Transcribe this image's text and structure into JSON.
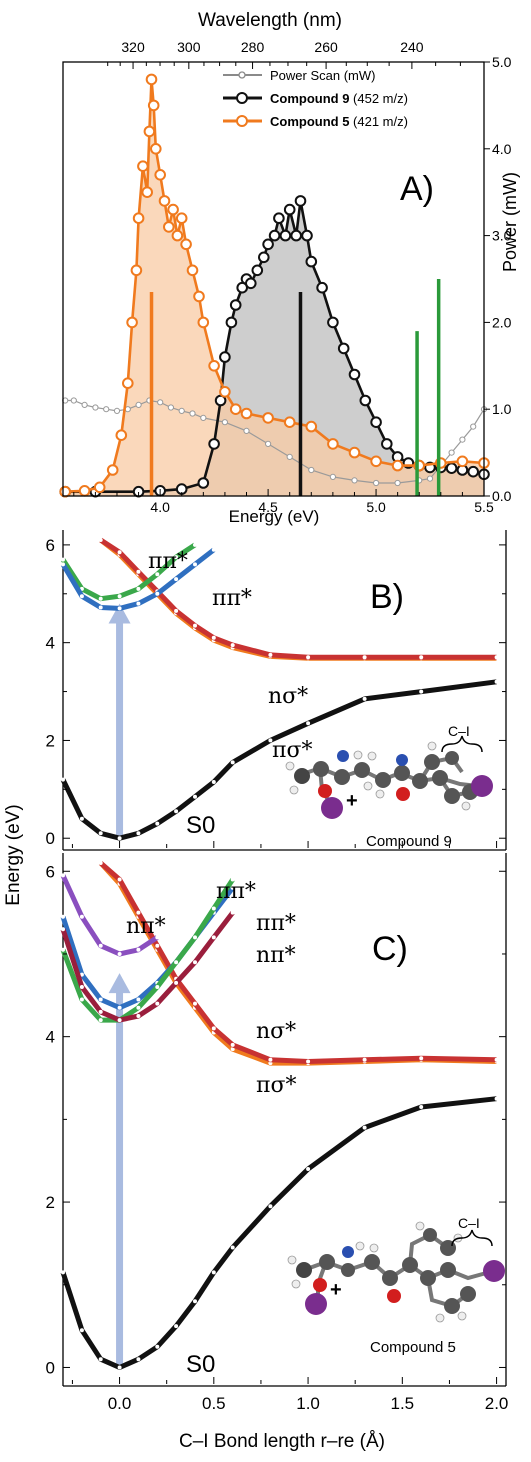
{
  "panel_a": {
    "top_axis_title": "Wavelength (nm)",
    "bottom_axis_title": "Energy (eV)",
    "right_axis_title": "Power (mW)",
    "panel_label": "A)",
    "legend": [
      {
        "label": "Power Scan (mW)",
        "suffix": "",
        "color": "#8a8a8a"
      },
      {
        "label": "Compound 9",
        "suffix": " (452 m/z)",
        "color": "#111111"
      },
      {
        "label": "Compound 5",
        "suffix": " (421 m/z)",
        "color": "#f07a1e"
      }
    ]
  },
  "panel_b": {
    "panel_label": "B)",
    "state_labels": [
      "ππ*",
      "ππ*",
      "nσ*",
      "πσ*",
      "S0"
    ],
    "molecule_label": "Compound 9",
    "bond_label": "C–I"
  },
  "panel_c": {
    "panel_label": "C)",
    "state_labels": [
      "ππ*",
      "ππ*",
      "nπ*",
      "nπ*",
      "nσ*",
      "πσ*",
      "S0"
    ],
    "molecule_label": "Compound 5",
    "bond_label": "C–I"
  },
  "shared": {
    "y_axis_title": "Energy (eV)",
    "x_axis_title": "C–I Bond length r–re (Å)"
  },
  "chart_data": [
    {
      "type": "line",
      "title": "A)",
      "xlabel": "Energy (eV)",
      "ylabel": "Power (mW)",
      "xlim": [
        3.55,
        5.5
      ],
      "ylim": [
        0,
        5.0
      ],
      "x_ticks": [
        4.0,
        4.5,
        5.0,
        5.5
      ],
      "y_ticks": [
        0.0,
        1.0,
        2.0,
        3.0,
        4.0,
        5.0
      ],
      "top_axis_ticks": [
        320,
        300,
        280,
        260,
        240
      ],
      "grid": false,
      "legend_position": "top-right",
      "colors": {
        "power": "#9a9a9a",
        "c9": "#111111",
        "c5": "#f07a1e",
        "c9_fill": "#c9c9c9",
        "c5_fill": "#f8cba4",
        "marker": "#2a9a3a"
      },
      "series": [
        {
          "name": "Power Scan (mW)",
          "x": [
            3.56,
            3.6,
            3.65,
            3.7,
            3.75,
            3.8,
            3.85,
            3.9,
            3.95,
            4.0,
            4.05,
            4.1,
            4.15,
            4.2,
            4.3,
            4.4,
            4.5,
            4.6,
            4.7,
            4.8,
            4.9,
            5.0,
            5.1,
            5.2,
            5.25,
            5.3,
            5.35,
            5.4,
            5.45,
            5.5
          ],
          "values": [
            1.1,
            1.1,
            1.05,
            1.02,
            1.0,
            0.98,
            1.0,
            1.05,
            1.1,
            1.08,
            1.02,
            0.98,
            0.95,
            0.9,
            0.85,
            0.75,
            0.6,
            0.45,
            0.3,
            0.22,
            0.18,
            0.15,
            0.15,
            0.18,
            0.2,
            0.35,
            0.5,
            0.65,
            0.8,
            1.0
          ]
        },
        {
          "name": "Compound 9",
          "x": [
            3.56,
            3.7,
            3.9,
            4.0,
            4.1,
            4.2,
            4.25,
            4.28,
            4.3,
            4.33,
            4.35,
            4.38,
            4.4,
            4.42,
            4.45,
            4.48,
            4.5,
            4.53,
            4.55,
            4.58,
            4.6,
            4.63,
            4.65,
            4.68,
            4.7,
            4.75,
            4.8,
            4.85,
            4.9,
            4.95,
            5.0,
            5.05,
            5.1,
            5.15,
            5.2,
            5.25,
            5.3,
            5.35,
            5.4,
            5.45,
            5.5
          ],
          "values": [
            0.05,
            0.05,
            0.05,
            0.06,
            0.08,
            0.15,
            0.6,
            1.1,
            1.6,
            2.0,
            2.2,
            2.4,
            2.5,
            2.45,
            2.6,
            2.75,
            2.9,
            3.0,
            3.2,
            3.0,
            3.3,
            3.0,
            3.4,
            3.0,
            2.7,
            2.4,
            2.0,
            1.7,
            1.4,
            1.1,
            0.85,
            0.6,
            0.45,
            0.38,
            0.35,
            0.33,
            0.33,
            0.32,
            0.3,
            0.28,
            0.25
          ]
        },
        {
          "name": "Compound 5",
          "x": [
            3.56,
            3.65,
            3.72,
            3.78,
            3.82,
            3.85,
            3.87,
            3.89,
            3.9,
            3.92,
            3.94,
            3.95,
            3.96,
            3.97,
            3.98,
            4.0,
            4.02,
            4.04,
            4.06,
            4.08,
            4.1,
            4.12,
            4.15,
            4.18,
            4.2,
            4.25,
            4.3,
            4.35,
            4.4,
            4.5,
            4.6,
            4.7,
            4.8,
            4.9,
            5.0,
            5.1,
            5.2,
            5.3,
            5.4,
            5.5
          ],
          "values": [
            0.05,
            0.06,
            0.1,
            0.3,
            0.7,
            1.3,
            2.0,
            2.6,
            3.2,
            3.8,
            3.5,
            4.2,
            4.8,
            4.5,
            4.0,
            3.7,
            3.4,
            3.1,
            3.3,
            3.0,
            3.2,
            2.9,
            2.6,
            2.3,
            2.0,
            1.5,
            1.2,
            1.0,
            0.95,
            0.9,
            0.85,
            0.8,
            0.6,
            0.5,
            0.4,
            0.35,
            0.35,
            0.38,
            0.4,
            0.38
          ]
        }
      ],
      "stick_markers": [
        {
          "x": 3.96,
          "height": 2.35,
          "color": "#f07a1e"
        },
        {
          "x": 4.65,
          "height": 2.35,
          "color": "#111111"
        },
        {
          "x": 5.19,
          "height": 1.9,
          "color": "#2a9a3a"
        },
        {
          "x": 5.29,
          "height": 2.5,
          "color": "#2a9a3a"
        }
      ]
    },
    {
      "type": "line",
      "title": "B)",
      "xlabel": "C–I Bond length r–re (Å)",
      "ylabel": "Energy (eV)",
      "xlim": [
        -0.3,
        2.05
      ],
      "ylim": [
        -0.2,
        6.1
      ],
      "y_ticks": [
        0,
        2,
        4,
        6
      ],
      "x_ticks": [
        0.0,
        0.5,
        1.0,
        1.5,
        2.0
      ],
      "grid": false,
      "series": [
        {
          "name": "S0",
          "color": "#111111",
          "x": [
            -0.3,
            -0.2,
            -0.1,
            0.0,
            0.1,
            0.2,
            0.3,
            0.4,
            0.5,
            0.6,
            0.8,
            1.0,
            1.3,
            1.6,
            2.0
          ],
          "values": [
            1.2,
            0.4,
            0.1,
            0.0,
            0.1,
            0.3,
            0.55,
            0.85,
            1.15,
            1.55,
            2.0,
            2.35,
            2.85,
            3.0,
            3.2
          ]
        },
        {
          "name": "πσ*",
          "color": "#f07a1e",
          "x": [
            -0.1,
            0.0,
            0.1,
            0.2,
            0.3,
            0.4,
            0.5,
            0.6,
            0.8,
            1.0,
            1.3,
            1.6,
            2.0
          ],
          "values": [
            6.1,
            5.8,
            5.4,
            5.0,
            4.6,
            4.3,
            4.05,
            3.9,
            3.72,
            3.68,
            3.68,
            3.68,
            3.68
          ]
        },
        {
          "name": "nσ*",
          "color": "#c83232",
          "x": [
            -0.1,
            0.0,
            0.1,
            0.2,
            0.3,
            0.4,
            0.5,
            0.6,
            0.8,
            1.0,
            1.3,
            1.6,
            2.0
          ],
          "values": [
            6.1,
            5.85,
            5.45,
            5.05,
            4.65,
            4.35,
            4.1,
            3.95,
            3.75,
            3.7,
            3.7,
            3.7,
            3.7
          ]
        },
        {
          "name": "ππ* (green)",
          "color": "#3aa84a",
          "x": [
            -0.3,
            -0.2,
            -0.1,
            0.0,
            0.1,
            0.2,
            0.3,
            0.4
          ],
          "values": [
            5.7,
            5.1,
            4.9,
            4.95,
            5.1,
            5.4,
            5.75,
            6.0
          ]
        },
        {
          "name": "ππ* (blue)",
          "color": "#2f6fc0",
          "x": [
            -0.3,
            -0.2,
            -0.1,
            0.0,
            0.1,
            0.2,
            0.3,
            0.4,
            0.5
          ],
          "values": [
            5.6,
            4.95,
            4.72,
            4.7,
            4.8,
            5.0,
            5.3,
            5.6,
            5.9
          ]
        }
      ]
    },
    {
      "type": "line",
      "title": "C)",
      "xlabel": "C–I Bond length r–re (Å)",
      "ylabel": "Energy (eV)",
      "xlim": [
        -0.3,
        2.05
      ],
      "ylim": [
        -0.2,
        6.1
      ],
      "y_ticks": [
        0,
        2,
        4,
        6
      ],
      "x_ticks": [
        0.0,
        0.5,
        1.0,
        1.5,
        2.0
      ],
      "grid": false,
      "series": [
        {
          "name": "S0",
          "color": "#111111",
          "x": [
            -0.3,
            -0.2,
            -0.1,
            0.0,
            0.1,
            0.2,
            0.3,
            0.4,
            0.5,
            0.6,
            0.8,
            1.0,
            1.3,
            1.6,
            2.0
          ],
          "values": [
            1.15,
            0.45,
            0.1,
            0.0,
            0.1,
            0.25,
            0.5,
            0.8,
            1.15,
            1.45,
            1.95,
            2.4,
            2.9,
            3.15,
            3.25
          ]
        },
        {
          "name": "πσ*",
          "color": "#f07a1e",
          "x": [
            -0.1,
            0.0,
            0.1,
            0.2,
            0.3,
            0.4,
            0.5,
            0.6,
            0.8,
            1.0,
            1.3,
            1.6,
            2.0
          ],
          "values": [
            6.1,
            5.85,
            5.45,
            5.05,
            4.65,
            4.35,
            4.05,
            3.85,
            3.68,
            3.68,
            3.7,
            3.72,
            3.7
          ]
        },
        {
          "name": "nσ*",
          "color": "#c83232",
          "x": [
            -0.1,
            0.0,
            0.1,
            0.2,
            0.3,
            0.4,
            0.5,
            0.6,
            0.8,
            1.0,
            1.3,
            1.6,
            2.0
          ],
          "values": [
            6.1,
            5.9,
            5.5,
            5.1,
            4.7,
            4.4,
            4.1,
            3.9,
            3.72,
            3.7,
            3.72,
            3.74,
            3.72
          ]
        },
        {
          "name": "nπ* (purple)",
          "color": "#8a4fbf",
          "x": [
            -0.3,
            -0.2,
            -0.1,
            0.0,
            0.1,
            0.2
          ],
          "values": [
            5.95,
            5.45,
            5.1,
            5.0,
            5.05,
            5.2
          ]
        },
        {
          "name": "ππ* (blue)",
          "color": "#2f6fc0",
          "x": [
            -0.3,
            -0.2,
            -0.1,
            0.0,
            0.1,
            0.2,
            0.3,
            0.4,
            0.5,
            0.6
          ],
          "values": [
            5.45,
            4.75,
            4.45,
            4.35,
            4.45,
            4.65,
            4.9,
            5.2,
            5.5,
            5.8
          ]
        },
        {
          "name": "ππ* (green)",
          "color": "#3aa84a",
          "x": [
            -0.3,
            -0.2,
            -0.1,
            0.0,
            0.1,
            0.2,
            0.3,
            0.4,
            0.5,
            0.6
          ],
          "values": [
            5.05,
            4.45,
            4.2,
            4.2,
            4.35,
            4.6,
            4.9,
            5.2,
            5.55,
            5.9
          ]
        },
        {
          "name": "nπ* (dark red)",
          "color": "#9a1e3c",
          "x": [
            -0.3,
            -0.2,
            -0.1,
            0.0,
            0.1,
            0.2,
            0.3,
            0.4,
            0.5,
            0.6
          ],
          "values": [
            5.3,
            4.6,
            4.3,
            4.2,
            4.25,
            4.4,
            4.65,
            4.9,
            5.2,
            5.5
          ]
        }
      ]
    }
  ]
}
